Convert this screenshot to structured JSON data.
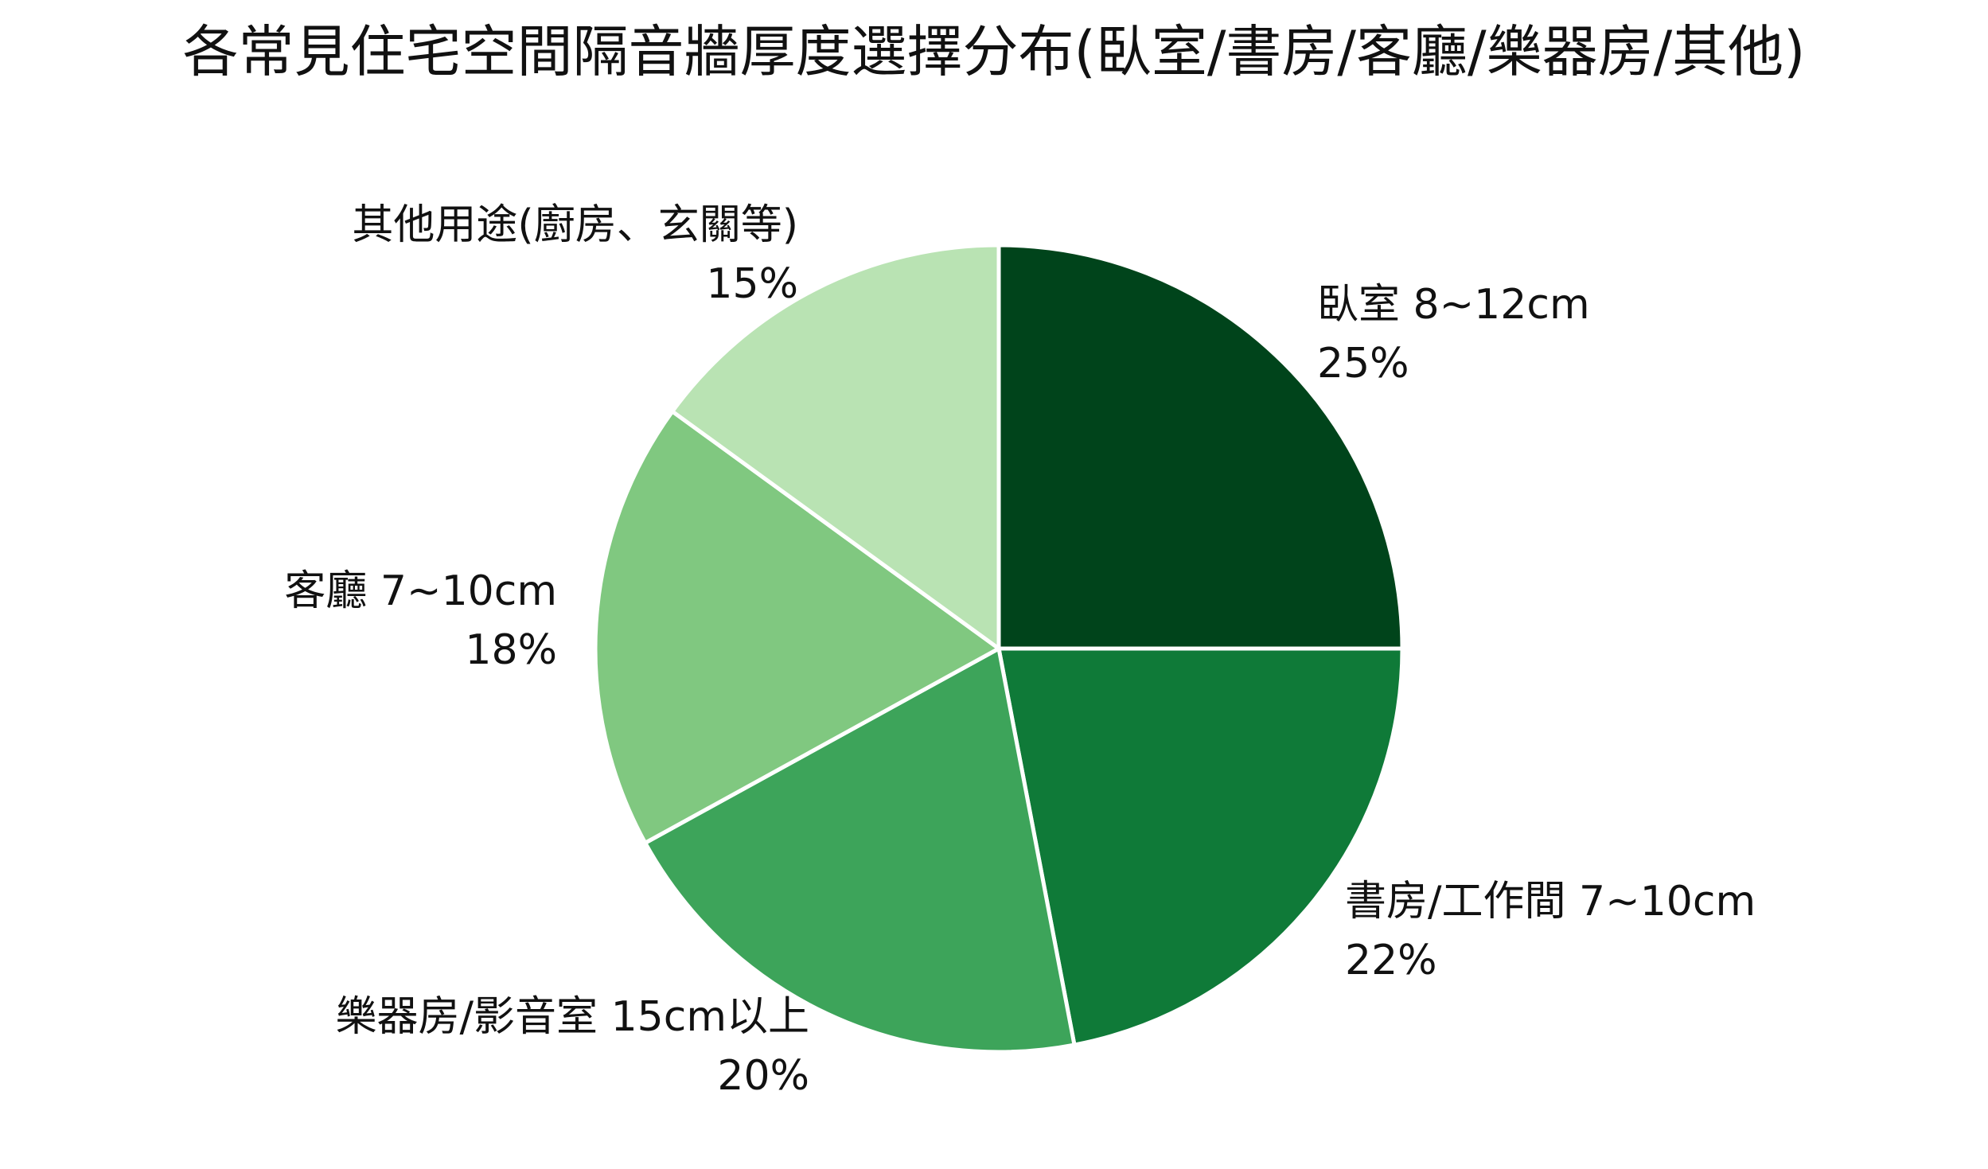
{
  "chart_data": {
    "type": "pie",
    "title": "各常見住宅空間隔音牆厚度選擇分布(臥室/書房/客廳/樂器房/其他)",
    "start_angle_deg": 90,
    "direction": "clockwise",
    "slices": [
      {
        "label": "臥室 8~12cm",
        "value": 25,
        "value_label": "25%",
        "color": "#00441b"
      },
      {
        "label": "書房/工作間 7~10cm",
        "value": 22,
        "value_label": "22%",
        "color": "#0f7a38"
      },
      {
        "label": "樂器房/影音室 15cm以上",
        "value": 20,
        "value_label": "20%",
        "color": "#3da45a"
      },
      {
        "label": "客廳 7~10cm",
        "value": 18,
        "value_label": "18%",
        "color": "#80c880"
      },
      {
        "label": "其他用途(廚房、玄關等)",
        "value": 15,
        "value_label": "15%",
        "color": "#b9e3b3"
      }
    ],
    "slice_edge_color": "#ffffff"
  }
}
